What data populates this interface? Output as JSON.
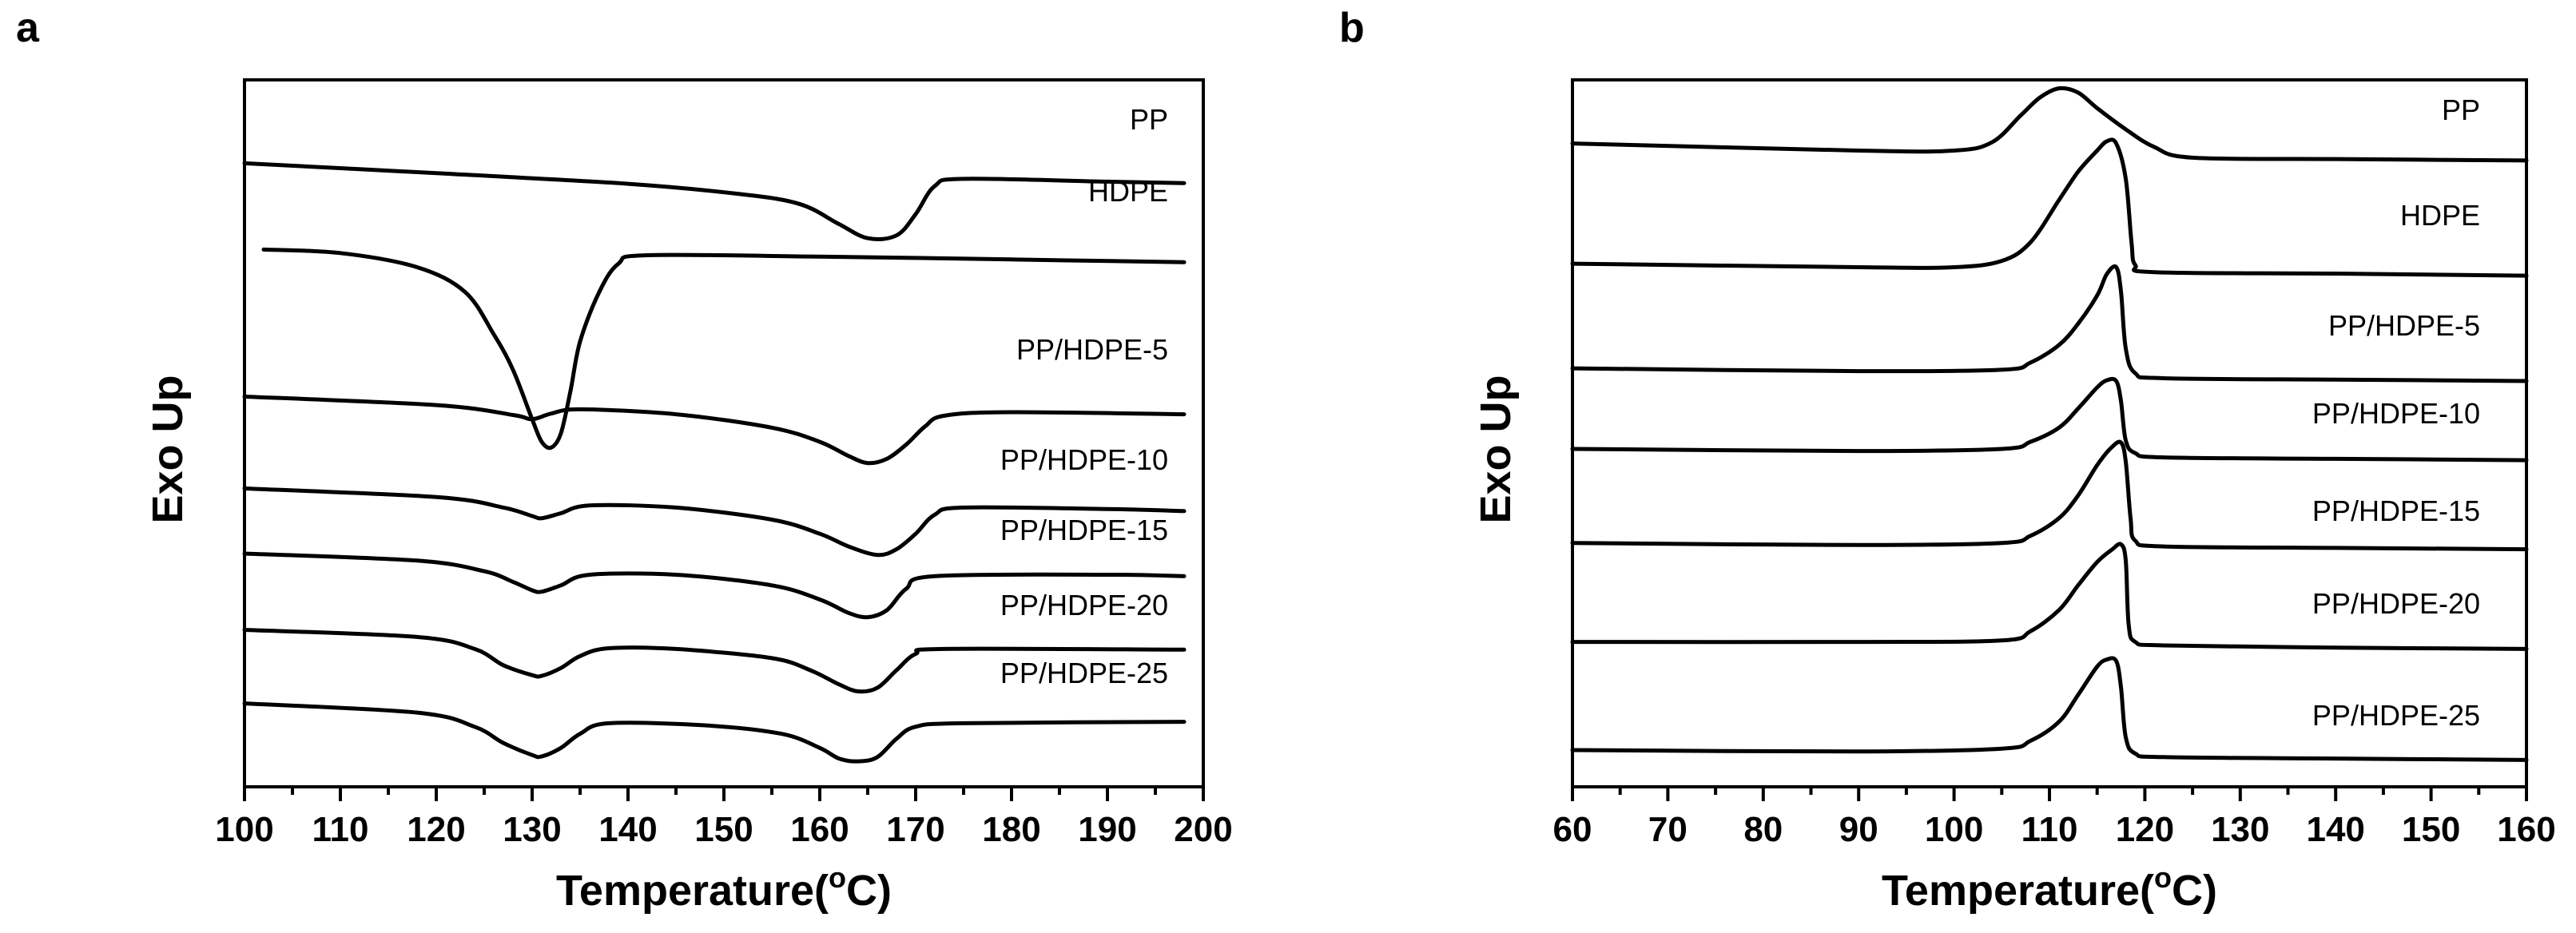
{
  "chart_data": [
    {
      "panel": "a",
      "type": "line",
      "xlabel": "Temperature(",
      "xlabel_sup": "o",
      "xlabel_suffix": "C)",
      "ylabel": "Exo Up",
      "xlim": [
        100,
        200
      ],
      "xticks": [
        100,
        110,
        120,
        130,
        140,
        150,
        160,
        170,
        180,
        190,
        200
      ],
      "series": [
        {
          "name": "PP",
          "points": [
            [
              100,
              0.882
            ],
            [
              120,
              0.868
            ],
            [
              140,
              0.853
            ],
            [
              152,
              0.838
            ],
            [
              158,
              0.824
            ],
            [
              162,
              0.796
            ],
            [
              165,
              0.776
            ],
            [
              168,
              0.78
            ],
            [
              170,
              0.81
            ],
            [
              172,
              0.85
            ],
            [
              175,
              0.86
            ],
            [
              190,
              0.856
            ],
            [
              198,
              0.854
            ]
          ]
        },
        {
          "name": "HDPE",
          "points": [
            [
              102,
              0.76
            ],
            [
              110,
              0.755
            ],
            [
              118,
              0.735
            ],
            [
              123,
              0.7
            ],
            [
              126,
              0.64
            ],
            [
              128,
              0.59
            ],
            [
              130,
              0.52
            ],
            [
              131,
              0.488
            ],
            [
              132,
              0.48
            ],
            [
              133,
              0.5
            ],
            [
              134,
              0.56
            ],
            [
              135,
              0.63
            ],
            [
              137,
              0.7
            ],
            [
              139,
              0.74
            ],
            [
              142,
              0.752
            ],
            [
              160,
              0.75
            ],
            [
              180,
              0.746
            ],
            [
              198,
              0.742
            ]
          ]
        },
        {
          "name": "PP/HDPE-5",
          "points": [
            [
              100,
              0.552
            ],
            [
              120,
              0.54
            ],
            [
              128,
              0.526
            ],
            [
              130,
              0.52
            ],
            [
              132,
              0.528
            ],
            [
              135,
              0.534
            ],
            [
              145,
              0.527
            ],
            [
              155,
              0.508
            ],
            [
              160,
              0.488
            ],
            [
              163,
              0.468
            ],
            [
              165,
              0.458
            ],
            [
              167,
              0.464
            ],
            [
              169,
              0.484
            ],
            [
              171,
              0.51
            ],
            [
              173,
              0.525
            ],
            [
              180,
              0.53
            ],
            [
              198,
              0.527
            ]
          ]
        },
        {
          "name": "PP/HDPE-10",
          "points": [
            [
              100,
              0.422
            ],
            [
              120,
              0.41
            ],
            [
              127,
              0.395
            ],
            [
              130,
              0.383
            ],
            [
              131,
              0.38
            ],
            [
              133,
              0.387
            ],
            [
              136,
              0.398
            ],
            [
              145,
              0.395
            ],
            [
              155,
              0.378
            ],
            [
              160,
              0.358
            ],
            [
              163,
              0.34
            ],
            [
              166,
              0.328
            ],
            [
              168,
              0.336
            ],
            [
              170,
              0.358
            ],
            [
              172,
              0.385
            ],
            [
              175,
              0.395
            ],
            [
              190,
              0.393
            ],
            [
              198,
              0.39
            ]
          ]
        },
        {
          "name": "PP/HDPE-15",
          "points": [
            [
              100,
              0.33
            ],
            [
              118,
              0.32
            ],
            [
              125,
              0.305
            ],
            [
              128,
              0.29
            ],
            [
              130,
              0.278
            ],
            [
              131,
              0.276
            ],
            [
              133,
              0.285
            ],
            [
              136,
              0.3
            ],
            [
              145,
              0.3
            ],
            [
              155,
              0.285
            ],
            [
              160,
              0.265
            ],
            [
              163,
              0.246
            ],
            [
              165,
              0.24
            ],
            [
              167,
              0.25
            ],
            [
              169,
              0.28
            ],
            [
              172,
              0.298
            ],
            [
              190,
              0.3
            ],
            [
              198,
              0.298
            ]
          ]
        },
        {
          "name": "PP/HDPE-20",
          "points": [
            [
              100,
              0.222
            ],
            [
              118,
              0.212
            ],
            [
              124,
              0.195
            ],
            [
              127,
              0.172
            ],
            [
              130,
              0.158
            ],
            [
              131,
              0.157
            ],
            [
              133,
              0.168
            ],
            [
              135,
              0.185
            ],
            [
              138,
              0.196
            ],
            [
              145,
              0.195
            ],
            [
              155,
              0.182
            ],
            [
              159,
              0.165
            ],
            [
              162,
              0.145
            ],
            [
              164,
              0.135
            ],
            [
              166,
              0.14
            ],
            [
              168,
              0.165
            ],
            [
              170,
              0.188
            ],
            [
              173,
              0.195
            ],
            [
              198,
              0.194
            ]
          ]
        },
        {
          "name": "PP/HDPE-25",
          "points": [
            [
              100,
              0.118
            ],
            [
              118,
              0.105
            ],
            [
              124,
              0.085
            ],
            [
              127,
              0.062
            ],
            [
              130,
              0.045
            ],
            [
              131,
              0.043
            ],
            [
              133,
              0.055
            ],
            [
              135,
              0.075
            ],
            [
              138,
              0.09
            ],
            [
              148,
              0.087
            ],
            [
              156,
              0.075
            ],
            [
              160,
              0.055
            ],
            [
              162,
              0.04
            ],
            [
              164,
              0.036
            ],
            [
              166,
              0.042
            ],
            [
              168,
              0.068
            ],
            [
              170,
              0.085
            ],
            [
              175,
              0.09
            ],
            [
              198,
              0.092
            ]
          ]
        }
      ]
    },
    {
      "panel": "b",
      "type": "line",
      "xlabel": "Temperature(",
      "xlabel_sup": "o",
      "xlabel_suffix": "C)",
      "ylabel": "Exo Up",
      "xlim": [
        60,
        160
      ],
      "xticks": [
        60,
        70,
        80,
        90,
        100,
        110,
        120,
        130,
        140,
        150,
        160
      ],
      "series": [
        {
          "name": "PP",
          "points": [
            [
              60,
              0.91
            ],
            [
              90,
              0.9
            ],
            [
              100,
              0.9
            ],
            [
              104,
              0.912
            ],
            [
              107,
              0.95
            ],
            [
              109,
              0.975
            ],
            [
              111,
              0.988
            ],
            [
              113,
              0.982
            ],
            [
              115,
              0.96
            ],
            [
              118,
              0.93
            ],
            [
              121,
              0.905
            ],
            [
              125,
              0.89
            ],
            [
              140,
              0.888
            ],
            [
              160,
              0.886
            ]
          ]
        },
        {
          "name": "HDPE",
          "points": [
            [
              60,
              0.74
            ],
            [
              90,
              0.735
            ],
            [
              100,
              0.735
            ],
            [
              105,
              0.744
            ],
            [
              108,
              0.77
            ],
            [
              111,
              0.83
            ],
            [
              113,
              0.87
            ],
            [
              115,
              0.9
            ],
            [
              116,
              0.913
            ],
            [
              117,
              0.91
            ],
            [
              118,
              0.86
            ],
            [
              118.6,
              0.77
            ],
            [
              119,
              0.738
            ],
            [
              121,
              0.728
            ],
            [
              140,
              0.726
            ],
            [
              160,
              0.723
            ]
          ]
        },
        {
          "name": "PP/HDPE-5",
          "points": [
            [
              60,
              0.592
            ],
            [
              90,
              0.588
            ],
            [
              105,
              0.59
            ],
            [
              108,
              0.6
            ],
            [
              111,
              0.625
            ],
            [
              113,
              0.655
            ],
            [
              115,
              0.695
            ],
            [
              116,
              0.725
            ],
            [
              117,
              0.735
            ],
            [
              117.5,
              0.7
            ],
            [
              118,
              0.62
            ],
            [
              119,
              0.585
            ],
            [
              122,
              0.578
            ],
            [
              140,
              0.576
            ],
            [
              160,
              0.574
            ]
          ]
        },
        {
          "name": "PP/HDPE-10",
          "points": [
            [
              60,
              0.478
            ],
            [
              90,
              0.475
            ],
            [
              105,
              0.478
            ],
            [
              108,
              0.488
            ],
            [
              111,
              0.508
            ],
            [
              113,
              0.535
            ],
            [
              115,
              0.565
            ],
            [
              116,
              0.575
            ],
            [
              117,
              0.574
            ],
            [
              117.5,
              0.545
            ],
            [
              118,
              0.49
            ],
            [
              119,
              0.472
            ],
            [
              122,
              0.466
            ],
            [
              140,
              0.464
            ],
            [
              160,
              0.462
            ]
          ]
        },
        {
          "name": "PP/HDPE-15",
          "points": [
            [
              60,
              0.345
            ],
            [
              90,
              0.342
            ],
            [
              105,
              0.345
            ],
            [
              108,
              0.355
            ],
            [
              111,
              0.38
            ],
            [
              113,
              0.412
            ],
            [
              115,
              0.455
            ],
            [
              116.5,
              0.48
            ],
            [
              117.5,
              0.487
            ],
            [
              118,
              0.46
            ],
            [
              118.5,
              0.38
            ],
            [
              119,
              0.348
            ],
            [
              122,
              0.34
            ],
            [
              140,
              0.338
            ],
            [
              160,
              0.336
            ]
          ]
        },
        {
          "name": "PP/HDPE-20",
          "points": [
            [
              60,
              0.205
            ],
            [
              90,
              0.205
            ],
            [
              105,
              0.207
            ],
            [
              108,
              0.22
            ],
            [
              111,
              0.25
            ],
            [
              113,
              0.285
            ],
            [
              115,
              0.318
            ],
            [
              116.5,
              0.335
            ],
            [
              117.5,
              0.343
            ],
            [
              118,
              0.32
            ],
            [
              118.3,
              0.23
            ],
            [
              119,
              0.205
            ],
            [
              122,
              0.2
            ],
            [
              140,
              0.197
            ],
            [
              160,
              0.195
            ]
          ]
        },
        {
          "name": "PP/HDPE-25",
          "points": [
            [
              60,
              0.052
            ],
            [
              90,
              0.05
            ],
            [
              105,
              0.054
            ],
            [
              108,
              0.065
            ],
            [
              111,
              0.092
            ],
            [
              113,
              0.13
            ],
            [
              115,
              0.17
            ],
            [
              116,
              0.18
            ],
            [
              117,
              0.178
            ],
            [
              117.5,
              0.14
            ],
            [
              118,
              0.07
            ],
            [
              119,
              0.047
            ],
            [
              122,
              0.042
            ],
            [
              140,
              0.04
            ],
            [
              160,
              0.038
            ]
          ]
        }
      ]
    }
  ]
}
